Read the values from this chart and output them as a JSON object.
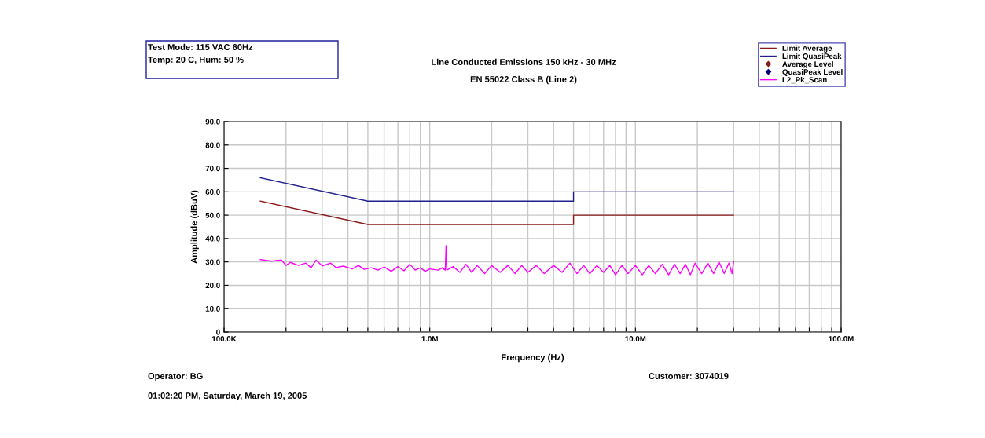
{
  "chart_data": {
    "type": "line",
    "title": "Line Conducted Emissions 150 kHz - 30 MHz",
    "subtitle": "EN 55022 Class B (Line 2)",
    "xlabel": "Frequency (Hz)",
    "ylabel": "Amplitude (dBuV)",
    "annotations": [
      "Test Mode: 115 VAC 60Hz",
      "Temp: 20 C, Hum: 50 %",
      "Operator: BG",
      "01:02:20 PM, Saturday, March 19, 2005",
      "Customer: 3074019"
    ],
    "log": "x",
    "xlim": [
      100000,
      100000000
    ],
    "xticks": [
      {
        "value": 100000,
        "label": "100.0K"
      },
      {
        "value": 200000,
        "label": null
      },
      {
        "value": 300000,
        "label": null
      },
      {
        "value": 400000,
        "label": null
      },
      {
        "value": 500000,
        "label": null
      },
      {
        "value": 600000,
        "label": null
      },
      {
        "value": 700000,
        "label": null
      },
      {
        "value": 800000,
        "label": null
      },
      {
        "value": 900000,
        "label": null
      },
      {
        "value": 1000000,
        "label": "1.0M"
      },
      {
        "value": 2000000,
        "label": null
      },
      {
        "value": 3000000,
        "label": null
      },
      {
        "value": 4000000,
        "label": null
      },
      {
        "value": 5000000,
        "label": null
      },
      {
        "value": 6000000,
        "label": null
      },
      {
        "value": 7000000,
        "label": null
      },
      {
        "value": 8000000,
        "label": null
      },
      {
        "value": 9000000,
        "label": null
      },
      {
        "value": 10000000,
        "label": "10.0M"
      },
      {
        "value": 20000000,
        "label": null
      },
      {
        "value": 30000000,
        "label": null
      },
      {
        "value": 40000000,
        "label": null
      },
      {
        "value": 50000000,
        "label": null
      },
      {
        "value": 60000000,
        "label": null
      },
      {
        "value": 70000000,
        "label": null
      },
      {
        "value": 80000000,
        "label": null
      },
      {
        "value": 90000000,
        "label": null
      },
      {
        "value": 100000000,
        "label": "100.0M"
      }
    ],
    "ylim": [
      0,
      90
    ],
    "yticks": [
      0,
      {
        "value": 10,
        "label": "10.0"
      },
      {
        "value": 20,
        "label": "20.0"
      },
      {
        "value": 30,
        "label": "30.0"
      },
      {
        "value": 40,
        "label": "40.0"
      },
      {
        "value": 50,
        "label": "50.0"
      },
      {
        "value": 60,
        "label": "60.0"
      },
      {
        "value": 70,
        "label": "70.0"
      },
      {
        "value": 80,
        "label": "80.0"
      },
      {
        "value": 90,
        "label": "90.0"
      }
    ],
    "grid": true,
    "legend": "top right",
    "marker": "none",
    "line_style": "solid",
    "series": [
      {
        "name": "Limit Average",
        "color": "#8b1a1a",
        "x": [
          150000,
          500000,
          5000000,
          5000000,
          30000000
        ],
        "values": [
          56,
          46,
          46,
          50,
          50
        ]
      },
      {
        "name": "Limit QuasiPeak",
        "color": "#1f1f8f",
        "x": [
          150000,
          500000,
          5000000,
          5000000,
          30000000
        ],
        "values": [
          66,
          56,
          56,
          60,
          60
        ]
      },
      {
        "name": "Average Level",
        "type": "scatter",
        "marker": "diamond",
        "color": "#8b1a1a"
      },
      {
        "name": "QuasiPeak Level",
        "type": "scatter",
        "marker": "diamond",
        "color": "#000080"
      },
      {
        "name": "L2_Pk_Scan",
        "color": "#ff00ff",
        "x": [
          150000,
          170000,
          190000,
          200000,
          210000,
          230000,
          250000,
          265000,
          280000,
          300000,
          330000,
          350000,
          380000,
          420000,
          450000,
          480000,
          520000,
          560000,
          600000,
          650000,
          700000,
          750000,
          800000,
          850000,
          900000,
          950000,
          1000000,
          1100000,
          1150000,
          1190000,
          1200000,
          1210000,
          1300000,
          1400000,
          1500000,
          1600000,
          1700000,
          1850000,
          2000000,
          2200000,
          2400000,
          2600000,
          2800000,
          3000000,
          3300000,
          3600000,
          4000000,
          4400000,
          4800000,
          5200000,
          5600000,
          6000000,
          6500000,
          7000000,
          7500000,
          8000000,
          8600000,
          9200000,
          10000000,
          10800000,
          11600000,
          12500000,
          13500000,
          14500000,
          15500000,
          16500000,
          17500000,
          18500000,
          19500000,
          21000000,
          22500000,
          24000000,
          25500000,
          27000000,
          28500000,
          29500000,
          30000000
        ],
        "values": [
          31,
          30.3,
          30.8,
          28.5,
          29.8,
          28.5,
          29.5,
          27.5,
          30.8,
          28.3,
          29.5,
          27.6,
          28.2,
          27,
          28.5,
          26.8,
          27.5,
          26.5,
          27.8,
          26,
          28,
          26.2,
          29,
          26.5,
          27.5,
          26,
          27,
          26.5,
          27.5,
          26.5,
          37,
          26.5,
          28,
          25.5,
          29,
          25.5,
          28.5,
          25,
          28.5,
          25.5,
          28.5,
          25,
          28.5,
          25.5,
          28.5,
          25,
          28.5,
          25.5,
          29.5,
          25,
          28.5,
          25,
          28.5,
          25.5,
          28.5,
          24.5,
          28.5,
          25,
          28.5,
          24.5,
          28.5,
          25,
          29,
          24.5,
          29,
          25,
          29,
          24.5,
          29.5,
          25,
          29.5,
          25,
          30,
          25,
          29.5,
          25,
          30
        ]
      }
    ]
  }
}
